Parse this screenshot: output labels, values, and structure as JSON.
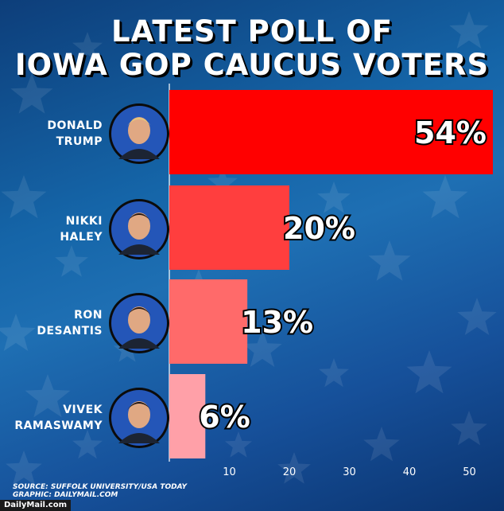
{
  "title": {
    "line1": "LATEST POLL OF",
    "line2": "IOWA GOP CAUCUS VOTERS"
  },
  "colors": {
    "bar_trump": "#ff0000",
    "bar_haley": "#ff3e3e",
    "bar_desantis": "#ff6a6a",
    "bar_ramaswamy": "#ffa0a8",
    "background": "#1565a8"
  },
  "chart_data": {
    "type": "bar",
    "orientation": "horizontal",
    "title": "LATEST POLL OF IOWA GOP CAUCUS VOTERS",
    "categories": [
      "DONALD TRUMP",
      "NIKKI HALEY",
      "RON DESANTIS",
      "VIVEK RAMASWAMY"
    ],
    "name_lines": [
      [
        "DONALD",
        "TRUMP"
      ],
      [
        "NIKKI",
        "HALEY"
      ],
      [
        "RON",
        "DESANTIS"
      ],
      [
        "VIVEK",
        "RAMASWAMY"
      ]
    ],
    "values": [
      54,
      20,
      13,
      6
    ],
    "data_labels": [
      "54%",
      "20%",
      "13%",
      "6%"
    ],
    "xlim": [
      0,
      55
    ],
    "xticks": [
      10,
      20,
      30,
      40,
      50
    ],
    "xlabel": "",
    "ylabel": "",
    "grid": false,
    "legend": "none"
  },
  "photos": [
    "donald-trump-photo",
    "nikki-haley-photo",
    "ron-desantis-photo",
    "vivek-ramaswamy-photo"
  ],
  "source": {
    "line1": "SOURCE: SUFFOLK UNIVERSITY/USA TODAY",
    "line2": "GRAPHIC: DAILYMAIL.COM"
  },
  "brand": "DailyMail.com"
}
